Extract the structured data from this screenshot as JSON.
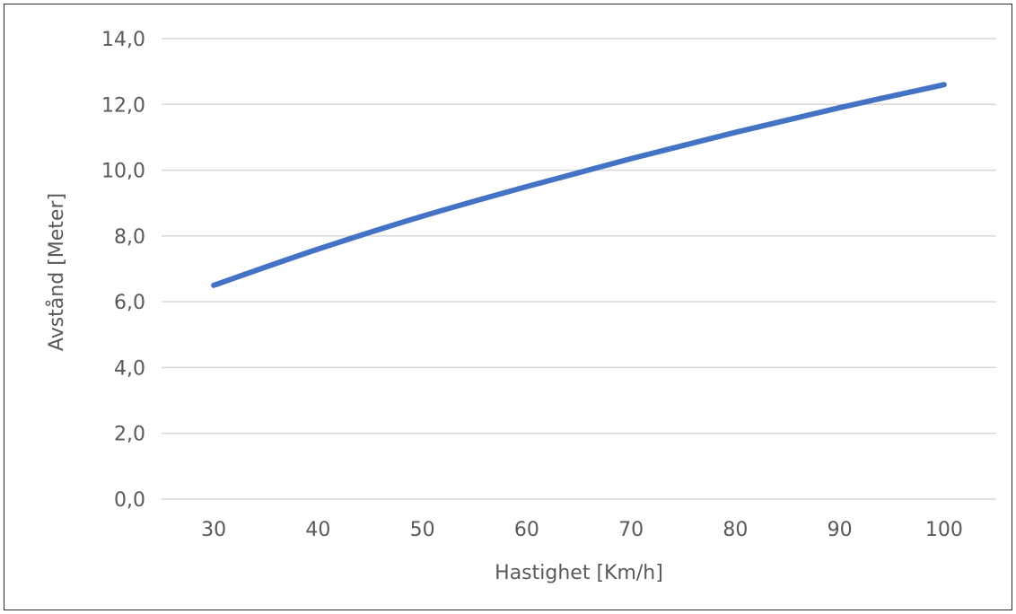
{
  "chart_data": {
    "type": "line",
    "xlabel": "Hastighet [Km/h]",
    "ylabel": "Avstånd [Meter]",
    "x": [
      30,
      40,
      50,
      60,
      70,
      80,
      90,
      100
    ],
    "x_tick_labels": [
      "30",
      "40",
      "50",
      "60",
      "70",
      "80",
      "90",
      "100"
    ],
    "y_tick_labels": [
      "0,0",
      "2,0",
      "4,0",
      "6,0",
      "8,0",
      "10,0",
      "12,0",
      "14,0"
    ],
    "ylim": [
      0,
      14
    ],
    "y_ticks": [
      0,
      2,
      4,
      6,
      8,
      10,
      12,
      14
    ],
    "grid": true,
    "series": [
      {
        "values": [
          6.5,
          7.6,
          8.6,
          9.5,
          10.35,
          11.15,
          11.9,
          12.6
        ],
        "color": "#4472c4"
      }
    ]
  }
}
